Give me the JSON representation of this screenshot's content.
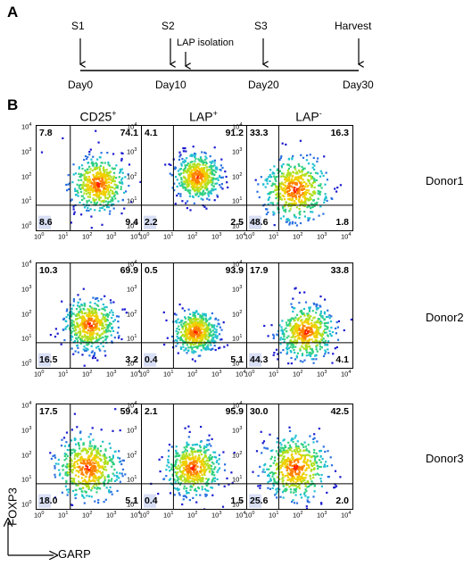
{
  "panel_a": {
    "label": "A",
    "timeline": [
      {
        "stage": "S1",
        "day": "Day0"
      },
      {
        "stage": "S2",
        "day": "Day10"
      },
      {
        "stage": "S3",
        "day": "Day20"
      },
      {
        "stage": "Harvest",
        "day": "Day30"
      }
    ],
    "event": "LAP isolation"
  },
  "panel_b": {
    "label": "B",
    "columns": [
      {
        "name": "CD25",
        "sup": "+"
      },
      {
        "name": "LAP",
        "sup": "+"
      },
      {
        "name": "LAP",
        "sup": "-"
      }
    ],
    "rows": [
      {
        "donor": "Donor1",
        "plots": [
          {
            "ul": "7.8",
            "ur": "74.1",
            "ll": "8.6",
            "lr": "9.4"
          },
          {
            "ul": "4.1",
            "ur": "91.2",
            "ll": "2.2",
            "lr": "2.5"
          },
          {
            "ul": "33.3",
            "ur": "16.3",
            "ll": "48.6",
            "lr": "1.8"
          }
        ]
      },
      {
        "donor": "Donor2",
        "plots": [
          {
            "ul": "10.3",
            "ur": "69.9",
            "ll": "16.5",
            "lr": "3.2"
          },
          {
            "ul": "0.5",
            "ur": "93.9",
            "ll": "0.4",
            "lr": "5.1"
          },
          {
            "ul": "17.9",
            "ur": "33.8",
            "ll": "44.3",
            "lr": "4.1"
          }
        ]
      },
      {
        "donor": "Donor3",
        "plots": [
          {
            "ul": "17.5",
            "ur": "59.4",
            "ll": "18.0",
            "lr": "5.1"
          },
          {
            "ul": "2.1",
            "ur": "95.9",
            "ll": "0.4",
            "lr": "1.5"
          },
          {
            "ul": "30.0",
            "ur": "42.5",
            "ll": "25.6",
            "lr": "2.0"
          }
        ]
      }
    ],
    "tick_base": "10",
    "x_exponents": [
      "0",
      "1",
      "2",
      "3",
      "4"
    ],
    "y_exponents": [
      "4",
      "3",
      "2",
      "1",
      "0"
    ],
    "y_axis_label": "FOXP3",
    "x_axis_label": "GARP"
  },
  "colors": {
    "density_high": "#ff2a00",
    "density_mid": "#f0e000",
    "density_low": "#30c8a0",
    "density_sparse": "#1010c0"
  }
}
